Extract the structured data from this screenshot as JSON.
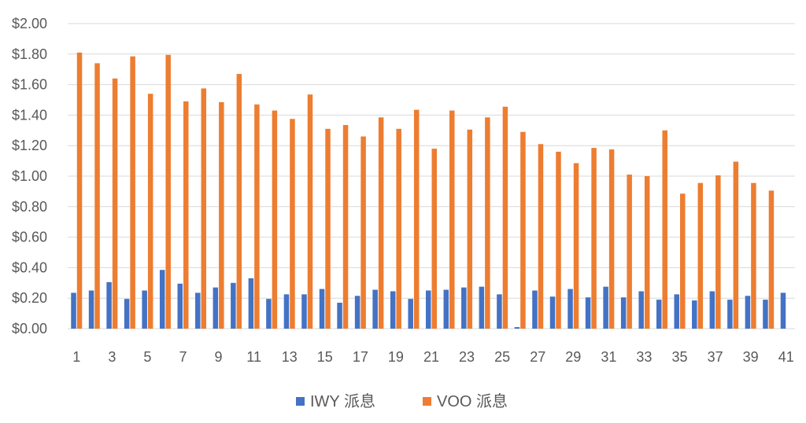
{
  "chart_data": {
    "type": "bar",
    "title": "",
    "xlabel": "",
    "ylabel": "",
    "categories": [
      1,
      2,
      3,
      4,
      5,
      6,
      7,
      8,
      9,
      10,
      11,
      12,
      13,
      14,
      15,
      16,
      17,
      18,
      19,
      20,
      21,
      22,
      23,
      24,
      25,
      26,
      27,
      28,
      29,
      30,
      31,
      32,
      33,
      34,
      35,
      36,
      37,
      38,
      39,
      40,
      41
    ],
    "x_tick_labels": [
      "1",
      "3",
      "5",
      "7",
      "9",
      "11",
      "13",
      "15",
      "17",
      "19",
      "21",
      "23",
      "25",
      "27",
      "29",
      "31",
      "33",
      "35",
      "37",
      "39",
      "41"
    ],
    "y_tick_labels": [
      "$0.00",
      "$0.20",
      "$0.40",
      "$0.60",
      "$0.80",
      "$1.00",
      "$1.20",
      "$1.40",
      "$1.60",
      "$1.80",
      "$2.00"
    ],
    "ylim": [
      0,
      2.0
    ],
    "y_step": 0.2,
    "grid": true,
    "legend_position": "bottom",
    "series": [
      {
        "name": "IWY 派息",
        "color": "#4472C4",
        "values": [
          0.235,
          0.25,
          0.305,
          0.195,
          0.25,
          0.385,
          0.295,
          0.235,
          0.27,
          0.3,
          0.33,
          0.195,
          0.225,
          0.225,
          0.26,
          0.17,
          0.215,
          0.255,
          0.245,
          0.195,
          0.25,
          0.255,
          0.27,
          0.275,
          0.225,
          0.01,
          0.25,
          0.21,
          0.26,
          0.205,
          0.275,
          0.205,
          0.245,
          0.19,
          0.225,
          0.185,
          0.245,
          0.19,
          0.215,
          0.19,
          0.235
        ]
      },
      {
        "name": "VOO 派息",
        "color": "#ED7D31",
        "values": [
          1.81,
          1.74,
          1.64,
          1.785,
          1.54,
          1.795,
          1.49,
          1.575,
          1.485,
          1.67,
          1.47,
          1.43,
          1.375,
          1.535,
          1.31,
          1.335,
          1.26,
          1.385,
          1.31,
          1.435,
          1.18,
          1.43,
          1.305,
          1.385,
          1.455,
          1.29,
          1.21,
          1.16,
          1.085,
          1.185,
          1.175,
          1.01,
          1.0,
          1.3,
          0.885,
          0.955,
          1.005,
          1.095,
          0.955,
          0.905,
          null
        ]
      }
    ]
  }
}
